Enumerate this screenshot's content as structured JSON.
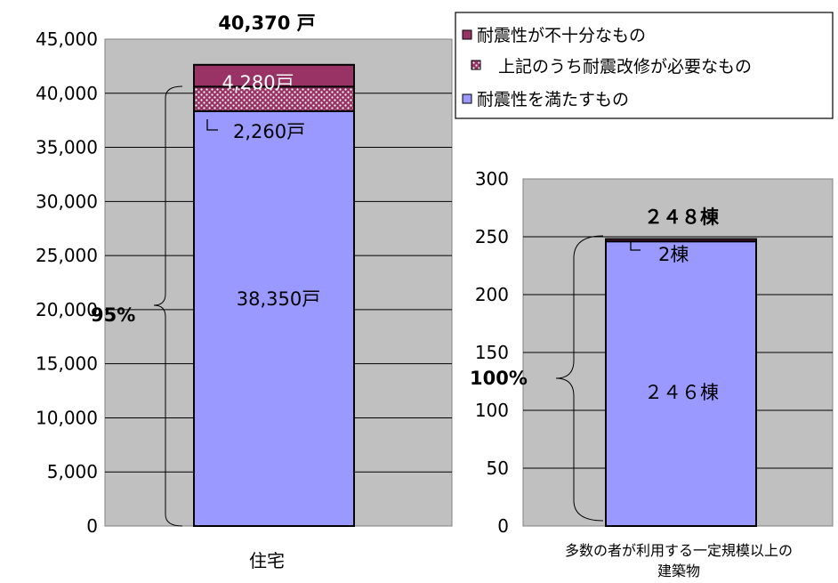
{
  "chart_data": [
    {
      "type": "bar",
      "stacked": true,
      "categories": [
        "住宅"
      ],
      "series": [
        {
          "name": "耐震性を満たすもの",
          "values": [
            38350
          ]
        },
        {
          "name": "上記のうち耐震改修が必要なもの",
          "values": [
            2260
          ]
        },
        {
          "name": "耐震性が不十分なもの",
          "values": [
            2020
          ]
        }
      ],
      "ylim": [
        0,
        45000
      ],
      "yticks": [
        "0",
        "5,000",
        "10,000",
        "15,000",
        "20,000",
        "25,000",
        "30,000",
        "35,000",
        "40,000",
        "45,000"
      ],
      "grid": true,
      "total_label": "40,370 戸",
      "segment_labels": {
        "top": "4,280戸",
        "middle": "2,260戸",
        "bottom": "38,350戸"
      },
      "percent_label": "95%"
    },
    {
      "type": "bar",
      "stacked": true,
      "categories": [
        "多数の者が利用する一定規模以上の建築物"
      ],
      "category_lines": [
        "多数の者が利用する一定規模以上の",
        "建築物"
      ],
      "series": [
        {
          "name": "耐震性を満たすもの",
          "values": [
            246
          ]
        },
        {
          "name": "上記のうち耐震改修が必要なもの",
          "values": [
            0
          ]
        },
        {
          "name": "耐震性が不十分なもの",
          "values": [
            2
          ]
        }
      ],
      "ylim": [
        0,
        300
      ],
      "yticks": [
        "0",
        "50",
        "100",
        "150",
        "200",
        "250",
        "300"
      ],
      "grid": true,
      "total_label": "２４８棟",
      "segment_labels": {
        "top": "2棟",
        "bottom": "２４６棟"
      },
      "percent_label": "100%"
    }
  ],
  "legend": {
    "placement": "top-right",
    "items": [
      {
        "label": "耐震性が不十分なもの",
        "color": "#993366"
      },
      {
        "label": "上記のうち耐震改修が必要なもの",
        "color": "#993366",
        "pattern": "dots"
      },
      {
        "label": "耐震性を満たすもの",
        "color": "#9999ff"
      }
    ]
  },
  "colors": {
    "plot_bg": "#c0c0c0",
    "satisfied": "#9999ff",
    "insufficient": "#993366",
    "dots": "#ffffff"
  }
}
